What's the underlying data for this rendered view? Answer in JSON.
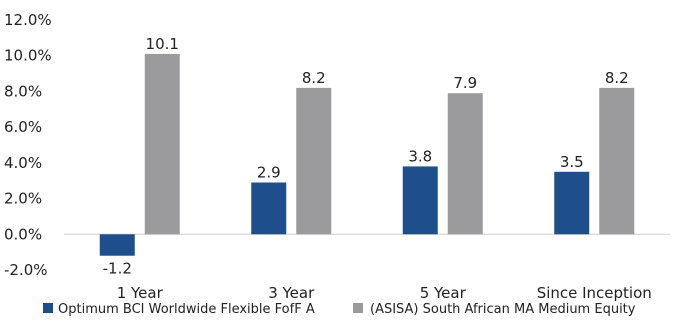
{
  "chart_data": {
    "type": "bar",
    "categories": [
      "1 Year",
      "3 Year",
      "5 Year",
      "Since Inception"
    ],
    "series": [
      {
        "name": "Optimum BCI Worldwide Flexible FofF A",
        "color": "#1f4e8c",
        "values": [
          -1.2,
          2.9,
          3.8,
          3.5
        ]
      },
      {
        "name": "(ASISA) South African MA Medium Equity",
        "color": "#9b9b9d",
        "values": [
          10.1,
          8.2,
          7.9,
          8.2
        ]
      }
    ],
    "data_labels": [
      [
        "-1.2",
        "2.9",
        "3.8",
        "3.5"
      ],
      [
        "10.1",
        "8.2",
        "7.9",
        "8.2"
      ]
    ],
    "yticks": [
      "12.0%",
      "10.0%",
      "8.0%",
      "6.0%",
      "4.0%",
      "2.0%",
      "0.0%",
      "-2.0%"
    ],
    "ytick_values": [
      12,
      10,
      8,
      6,
      4,
      2,
      0,
      -2
    ],
    "ylim": [
      -2,
      12
    ],
    "grid": false,
    "legend_position": "bottom",
    "title": "",
    "xlabel": "",
    "ylabel": ""
  }
}
